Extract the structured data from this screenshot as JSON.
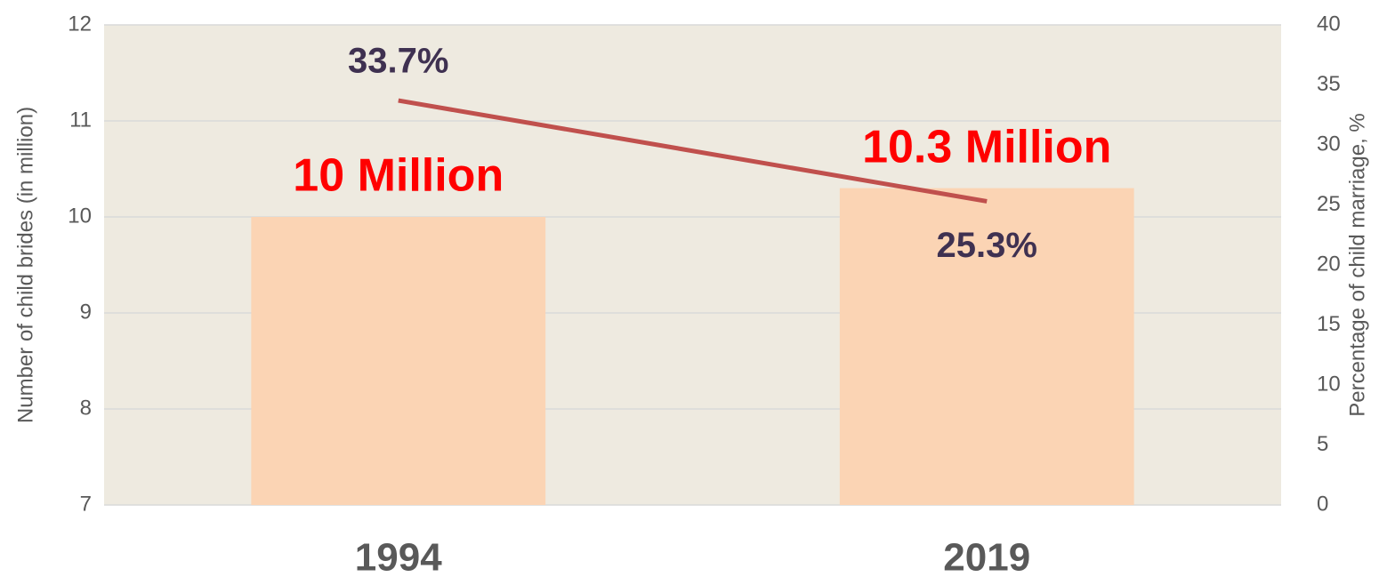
{
  "chart_data": {
    "type": "bar",
    "categories": [
      "1994",
      "2019"
    ],
    "series": [
      {
        "type": "bar",
        "color": "#fbd4b4",
        "values": [
          10,
          10.3
        ],
        "value_labels": [
          "10 Million",
          "10.3 Million"
        ]
      },
      {
        "type": "line",
        "axis": "y2",
        "color": "#c0504d",
        "values": [
          33.7,
          25.3
        ],
        "value_labels": [
          "33.7%",
          "25.3%"
        ]
      }
    ],
    "ylabel": "Number of child brides (in million)",
    "y2label": "Percentage of child marriage, %",
    "ylim": [
      7,
      12
    ],
    "yticks": [
      7,
      8,
      9,
      10,
      11,
      12
    ],
    "y2lim": [
      0,
      40
    ],
    "y2ticks": [
      0,
      5,
      10,
      15,
      20,
      25,
      30,
      35,
      40
    ],
    "grid": true,
    "background": "#eeeae0"
  }
}
